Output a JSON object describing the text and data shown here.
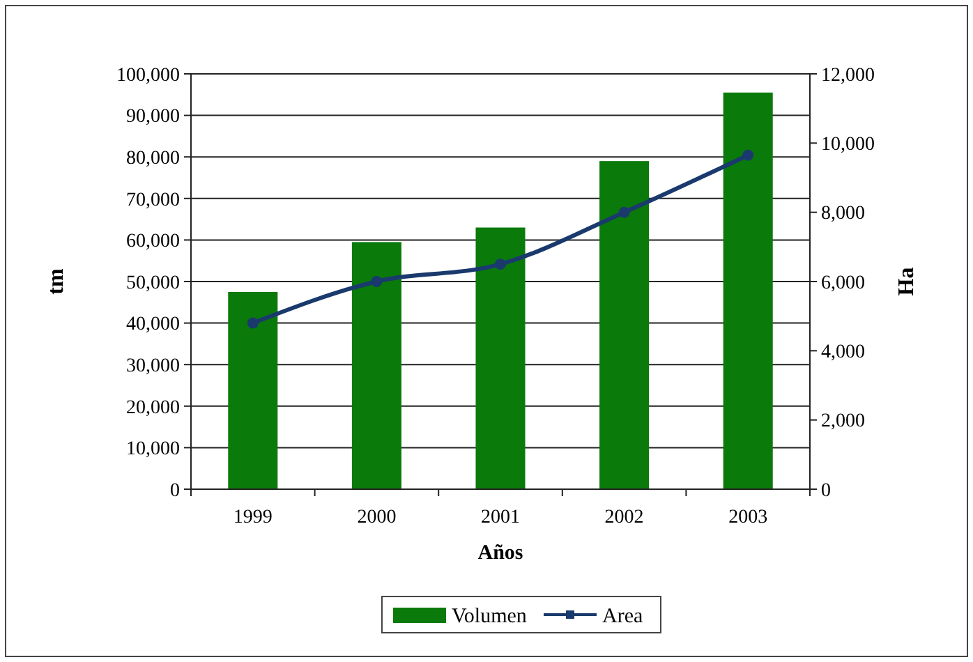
{
  "chart_data": {
    "type": "bar",
    "categories": [
      "1999",
      "2000",
      "2001",
      "2002",
      "2003"
    ],
    "series": [
      {
        "name": "Volumen",
        "color": "#0a7a0a",
        "values": [
          47500,
          59500,
          63000,
          79000,
          95500
        ]
      },
      {
        "name": "Area",
        "type": "line",
        "axis": "y2",
        "color": "#1a3a6e",
        "values": [
          4800,
          6000,
          6500,
          8000,
          9650
        ],
        "marker": "circle"
      }
    ],
    "xlabel": "Años",
    "ylabel": "tm",
    "y2label": "Ha",
    "ylim": [
      0,
      100000
    ],
    "yticks": [
      {
        "value": 0,
        "label": "0"
      },
      {
        "value": 10000,
        "label": "10,000"
      },
      {
        "value": 20000,
        "label": "20,000"
      },
      {
        "value": 30000,
        "label": "30,000"
      },
      {
        "value": 40000,
        "label": "40,000"
      },
      {
        "value": 50000,
        "label": "50,000"
      },
      {
        "value": 60000,
        "label": "60,000"
      },
      {
        "value": 70000,
        "label": "70,000"
      },
      {
        "value": 80000,
        "label": "80,000"
      },
      {
        "value": 90000,
        "label": "90,000"
      },
      {
        "value": 100000,
        "label": "100,000"
      }
    ],
    "y2lim": [
      0,
      12000
    ],
    "y2ticks": [
      {
        "value": 0,
        "label": "0"
      },
      {
        "value": 2000,
        "label": "2,000"
      },
      {
        "value": 4000,
        "label": "4,000"
      },
      {
        "value": 6000,
        "label": "6,000"
      },
      {
        "value": 8000,
        "label": "8,000"
      },
      {
        "value": 10000,
        "label": "10,000"
      },
      {
        "value": 12000,
        "label": "12,000"
      }
    ],
    "grid": "y",
    "legend": "bottom"
  }
}
